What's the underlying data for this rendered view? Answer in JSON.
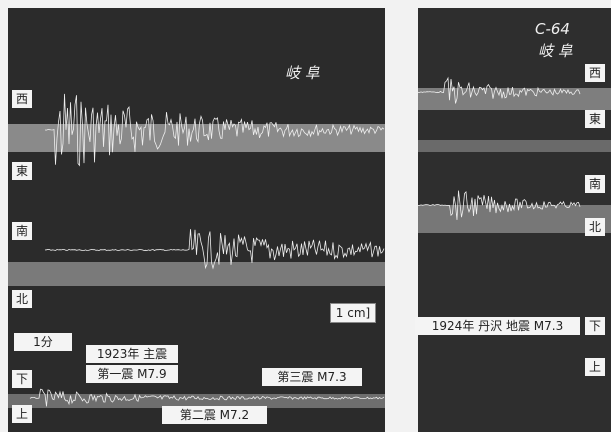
{
  "left_panel": {
    "title": "岐 阜",
    "channels": [
      "西",
      "東",
      "南",
      "北",
      "下",
      "上"
    ],
    "scale_time": "1分",
    "scale_amp": "1 cm]",
    "main_label": "1923年 主震",
    "shocks": [
      "第一震 M7.9",
      "第三震 M7.3",
      "第二震 M7.2"
    ]
  },
  "right_panel": {
    "code": "C-64",
    "title": "岐 阜",
    "channels": [
      "西",
      "東",
      "南",
      "北",
      "下",
      "上"
    ],
    "label": "1924年 丹沢 地震 M7.3"
  }
}
